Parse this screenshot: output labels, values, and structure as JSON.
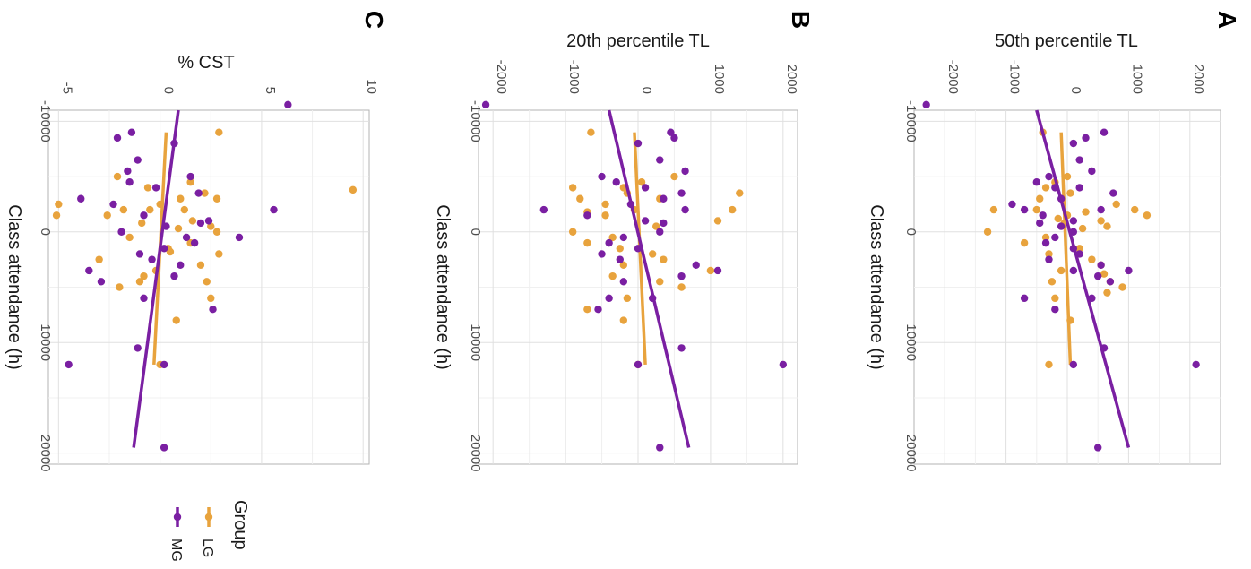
{
  "colors": {
    "LG": "#E8A33D",
    "MG": "#7A1FA2"
  },
  "legend": {
    "title": "Group",
    "items": [
      {
        "key": "LG",
        "label": "LG"
      },
      {
        "key": "MG",
        "label": "MG"
      }
    ]
  },
  "chart_data": [
    {
      "panel": "A",
      "type": "scatter",
      "xlabel": "Class attendance (h)",
      "ylabel": "50th percentile TL",
      "xlim": [
        -11000,
        21000
      ],
      "ylim": [
        -2500,
        2500
      ],
      "xticks": [
        -10000,
        0,
        10000,
        20000
      ],
      "yticks": [
        -2000,
        -1000,
        0,
        1000,
        2000
      ],
      "grid": true,
      "series": [
        {
          "name": "LG",
          "points": [
            [
              -9000,
              -400
            ],
            [
              -5000,
              0
            ],
            [
              -4500,
              -200
            ],
            [
              -4000,
              -350
            ],
            [
              -3500,
              50
            ],
            [
              -3000,
              -450
            ],
            [
              -2500,
              800
            ],
            [
              -2000,
              -1200
            ],
            [
              -2000,
              -500
            ],
            [
              -2000,
              1100
            ],
            [
              -1800,
              300
            ],
            [
              -1500,
              1300
            ],
            [
              -1500,
              0
            ],
            [
              -1200,
              -150
            ],
            [
              -1000,
              550
            ],
            [
              -800,
              -50
            ],
            [
              -500,
              650
            ],
            [
              -300,
              250
            ],
            [
              0,
              -1300
            ],
            [
              500,
              -350
            ],
            [
              1000,
              -700
            ],
            [
              1500,
              200
            ],
            [
              2000,
              -300
            ],
            [
              2500,
              400
            ],
            [
              3000,
              550
            ],
            [
              3500,
              -100
            ],
            [
              3800,
              600
            ],
            [
              4500,
              -250
            ],
            [
              4500,
              700
            ],
            [
              5000,
              900
            ],
            [
              5500,
              650
            ],
            [
              6000,
              -200
            ],
            [
              8000,
              50
            ],
            [
              12000,
              -300
            ]
          ],
          "fit": {
            "x": [
              -9000,
              12000
            ],
            "y": [
              -100,
              50
            ]
          }
        },
        {
          "name": "MG",
          "points": [
            [
              -11500,
              -2300
            ],
            [
              -9000,
              600
            ],
            [
              -8500,
              300
            ],
            [
              -8000,
              100
            ],
            [
              -6500,
              200
            ],
            [
              -5500,
              400
            ],
            [
              -5000,
              -300
            ],
            [
              -4500,
              -500
            ],
            [
              -4000,
              200
            ],
            [
              -4000,
              -200
            ],
            [
              -3500,
              750
            ],
            [
              -3000,
              -100
            ],
            [
              -2500,
              -900
            ],
            [
              -2000,
              550
            ],
            [
              -2000,
              -700
            ],
            [
              -1500,
              -400
            ],
            [
              -1000,
              100
            ],
            [
              -800,
              -450
            ],
            [
              -500,
              -100
            ],
            [
              0,
              100
            ],
            [
              500,
              -200
            ],
            [
              1000,
              -350
            ],
            [
              1500,
              100
            ],
            [
              2000,
              200
            ],
            [
              2500,
              -300
            ],
            [
              3000,
              550
            ],
            [
              3500,
              100
            ],
            [
              3500,
              1000
            ],
            [
              4000,
              500
            ],
            [
              4500,
              700
            ],
            [
              6000,
              -700
            ],
            [
              6000,
              400
            ],
            [
              7000,
              -200
            ],
            [
              10500,
              600
            ],
            [
              12000,
              100
            ],
            [
              12000,
              2100
            ],
            [
              19500,
              500
            ]
          ],
          "fit": {
            "x": [
              -11000,
              19500
            ],
            "y": [
              -500,
              1000
            ]
          }
        }
      ]
    },
    {
      "panel": "B",
      "type": "scatter",
      "xlabel": "Class attendance (h)",
      "ylabel": "20th percentile TL",
      "xlim": [
        -11000,
        21000
      ],
      "ylim": [
        -2200,
        2200
      ],
      "xticks": [
        -10000,
        0,
        10000,
        20000
      ],
      "yticks": [
        -2000,
        -1000,
        0,
        1000,
        2000
      ],
      "grid": true,
      "series": [
        {
          "name": "LG",
          "points": [
            [
              -9000,
              -650
            ],
            [
              -5000,
              500
            ],
            [
              -4500,
              50
            ],
            [
              -4000,
              -200
            ],
            [
              -3500,
              -150
            ],
            [
              -3000,
              -800
            ],
            [
              -3000,
              300
            ],
            [
              -2500,
              -450
            ],
            [
              -2000,
              -50
            ],
            [
              -2000,
              1300
            ],
            [
              -1800,
              -700
            ],
            [
              -1500,
              -450
            ],
            [
              -1000,
              1100
            ],
            [
              -500,
              250
            ],
            [
              0,
              -900
            ],
            [
              500,
              -350
            ],
            [
              1000,
              -700
            ],
            [
              1500,
              -250
            ],
            [
              2000,
              200
            ],
            [
              2500,
              350
            ],
            [
              3000,
              -200
            ],
            [
              3500,
              1000
            ],
            [
              4000,
              -350
            ],
            [
              4500,
              300
            ],
            [
              5000,
              600
            ],
            [
              6000,
              -150
            ],
            [
              7000,
              -700
            ],
            [
              8000,
              -200
            ],
            [
              12000,
              0
            ],
            [
              -4000,
              -900
            ],
            [
              -3500,
              1400
            ]
          ],
          "fit": {
            "x": [
              -9000,
              12000
            ],
            "y": [
              -50,
              100
            ]
          }
        },
        {
          "name": "MG",
          "points": [
            [
              -11500,
              -2100
            ],
            [
              -9000,
              450
            ],
            [
              -8500,
              500
            ],
            [
              -8000,
              0
            ],
            [
              -6500,
              300
            ],
            [
              -5500,
              650
            ],
            [
              -5000,
              -500
            ],
            [
              -4500,
              -300
            ],
            [
              -4000,
              100
            ],
            [
              -3500,
              600
            ],
            [
              -3000,
              350
            ],
            [
              -2500,
              -100
            ],
            [
              -2000,
              -1300
            ],
            [
              -2000,
              650
            ],
            [
              -1500,
              -700
            ],
            [
              -1000,
              100
            ],
            [
              -800,
              350
            ],
            [
              0,
              300
            ],
            [
              500,
              -200
            ],
            [
              1000,
              -400
            ],
            [
              1500,
              0
            ],
            [
              2000,
              -500
            ],
            [
              2500,
              -250
            ],
            [
              3000,
              800
            ],
            [
              3500,
              1100
            ],
            [
              4000,
              600
            ],
            [
              4500,
              -200
            ],
            [
              6000,
              -400
            ],
            [
              6000,
              200
            ],
            [
              7000,
              -550
            ],
            [
              10500,
              600
            ],
            [
              12000,
              0
            ],
            [
              12000,
              2000
            ],
            [
              19500,
              300
            ]
          ],
          "fit": {
            "x": [
              -11000,
              19500
            ],
            "y": [
              -400,
              700
            ]
          }
        }
      ]
    },
    {
      "panel": "C",
      "type": "scatter",
      "xlabel": "Class attendance (h)",
      "ylabel": "% CST",
      "xlim": [
        -11000,
        21000
      ],
      "ylim": [
        -5.5,
        10.3
      ],
      "xticks": [
        -10000,
        0,
        10000,
        20000
      ],
      "yticks": [
        -5,
        0,
        5,
        10
      ],
      "grid": true,
      "series": [
        {
          "name": "LG",
          "points": [
            [
              -9000,
              2.9
            ],
            [
              -5000,
              -2.1
            ],
            [
              -4500,
              1.5
            ],
            [
              -4000,
              -0.6
            ],
            [
              -3500,
              2.2
            ],
            [
              -3000,
              1.0
            ],
            [
              -3000,
              2.8
            ],
            [
              -2500,
              -5.0
            ],
            [
              -2500,
              0.0
            ],
            [
              -2000,
              -1.8
            ],
            [
              -2000,
              1.2
            ],
            [
              -2000,
              -0.5
            ],
            [
              -1500,
              -5.1
            ],
            [
              -1500,
              -2.6
            ],
            [
              -1000,
              1.6
            ],
            [
              -800,
              -0.9
            ],
            [
              -500,
              2.5
            ],
            [
              -300,
              0.9
            ],
            [
              0,
              2.8
            ],
            [
              500,
              -1.5
            ],
            [
              1000,
              1.5
            ],
            [
              1500,
              0.4
            ],
            [
              2000,
              2.9
            ],
            [
              2500,
              -3.0
            ],
            [
              3000,
              2.0
            ],
            [
              3500,
              -0.2
            ],
            [
              4000,
              -0.8
            ],
            [
              4500,
              -1.0
            ],
            [
              4500,
              2.3
            ],
            [
              5000,
              -2.0
            ],
            [
              6000,
              2.5
            ],
            [
              8000,
              0.8
            ],
            [
              12000,
              0.0
            ],
            [
              -3800,
              9.5
            ],
            [
              1800,
              0.5
            ]
          ],
          "fit": {
            "x": [
              -9000,
              12000
            ],
            "y": [
              0.3,
              -0.3
            ]
          }
        },
        {
          "name": "MG",
          "points": [
            [
              -11500,
              6.3
            ],
            [
              -9000,
              -1.4
            ],
            [
              -8500,
              -2.1
            ],
            [
              -8000,
              0.7
            ],
            [
              -6500,
              -1.1
            ],
            [
              -5500,
              -1.6
            ],
            [
              -5000,
              1.5
            ],
            [
              -4500,
              -1.5
            ],
            [
              -4000,
              -0.2
            ],
            [
              -3500,
              1.9
            ],
            [
              -3000,
              -3.9
            ],
            [
              -2500,
              -2.3
            ],
            [
              -2000,
              5.6
            ],
            [
              -1500,
              -0.8
            ],
            [
              -1000,
              2.4
            ],
            [
              -800,
              2.0
            ],
            [
              -500,
              0.3
            ],
            [
              0,
              -1.9
            ],
            [
              500,
              1.3
            ],
            [
              1000,
              1.7
            ],
            [
              1500,
              0.2
            ],
            [
              2000,
              -1.0
            ],
            [
              2500,
              -0.4
            ],
            [
              3000,
              1.0
            ],
            [
              3500,
              -3.5
            ],
            [
              4000,
              0.7
            ],
            [
              4500,
              -2.9
            ],
            [
              6000,
              -0.8
            ],
            [
              7000,
              2.6
            ],
            [
              10500,
              -1.1
            ],
            [
              12000,
              0.2
            ],
            [
              12000,
              -4.5
            ],
            [
              19500,
              0.2
            ],
            [
              500,
              3.9
            ]
          ],
          "fit": {
            "x": [
              -11000,
              19500
            ],
            "y": [
              0.9,
              -1.3
            ]
          }
        }
      ]
    }
  ]
}
